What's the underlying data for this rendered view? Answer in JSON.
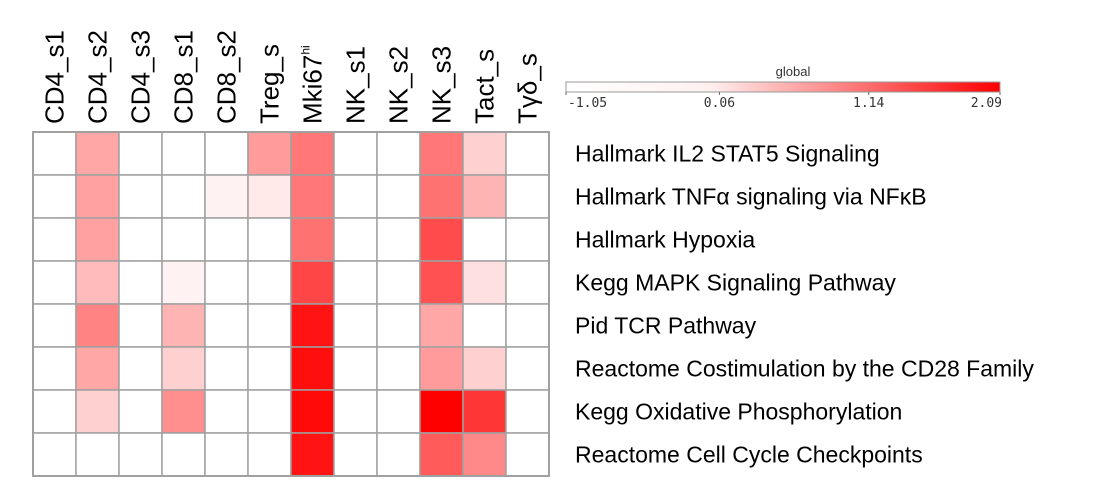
{
  "chart_data": {
    "type": "heatmap",
    "columns": [
      {
        "name": "CD4_s1"
      },
      {
        "name": "CD4_s2"
      },
      {
        "name": "CD4_s3"
      },
      {
        "name": "CD8_s1"
      },
      {
        "name": "CD8_s2"
      },
      {
        "name": "Treg_s"
      },
      {
        "name": "Mki67",
        "sup": "hi"
      },
      {
        "name": "NK_s1"
      },
      {
        "name": "NK_s2"
      },
      {
        "name": "NK_s3"
      },
      {
        "name": "Tact_s"
      },
      {
        "name": "Tγδ_s"
      }
    ],
    "rows": [
      "Hallmark IL2 STAT5 Signaling",
      "Hallmark TNFα signaling via NFκB",
      "Hallmark Hypoxia",
      "Kegg MAPK Signaling Pathway",
      "Pid TCR Pathway",
      "Reactome Costimulation by the CD28 Family",
      "Kegg Oxidative Phosphorylation",
      "Reactome Cell Cycle Checkpoints"
    ],
    "values": [
      [
        0,
        0.55,
        0,
        0,
        0,
        0.65,
        0.95,
        0,
        0,
        0.95,
        0.25,
        0
      ],
      [
        0,
        0.6,
        0,
        0,
        0.05,
        0.1,
        0.95,
        0,
        0,
        1.0,
        0.45,
        0
      ],
      [
        0,
        0.6,
        0,
        0,
        0,
        0,
        1.0,
        0,
        0,
        1.35,
        0,
        0
      ],
      [
        0,
        0.4,
        0,
        0.05,
        0,
        0,
        1.4,
        0,
        0,
        1.3,
        0.15,
        0
      ],
      [
        0,
        0.85,
        0,
        0.45,
        0,
        0,
        1.9,
        0,
        0,
        0.55,
        0,
        0
      ],
      [
        0,
        0.55,
        0,
        0.25,
        0,
        0,
        1.95,
        0,
        0,
        0.65,
        0.25,
        0
      ],
      [
        0,
        0.25,
        0,
        0.75,
        0,
        0,
        2.0,
        0,
        0,
        2.09,
        1.55,
        0
      ],
      [
        0,
        0,
        0,
        0,
        0,
        0,
        1.9,
        0,
        0,
        1.2,
        0.8,
        0
      ]
    ],
    "legend": {
      "title": "global",
      "min": -1.05,
      "max": 2.09,
      "ticks": [
        "-1.05",
        "0.06",
        "1.14",
        "2.09"
      ],
      "low_color": "#ffffff",
      "high_color": "#ff0000",
      "placement": "top-right"
    },
    "grid_color": "#a0a0a0"
  }
}
